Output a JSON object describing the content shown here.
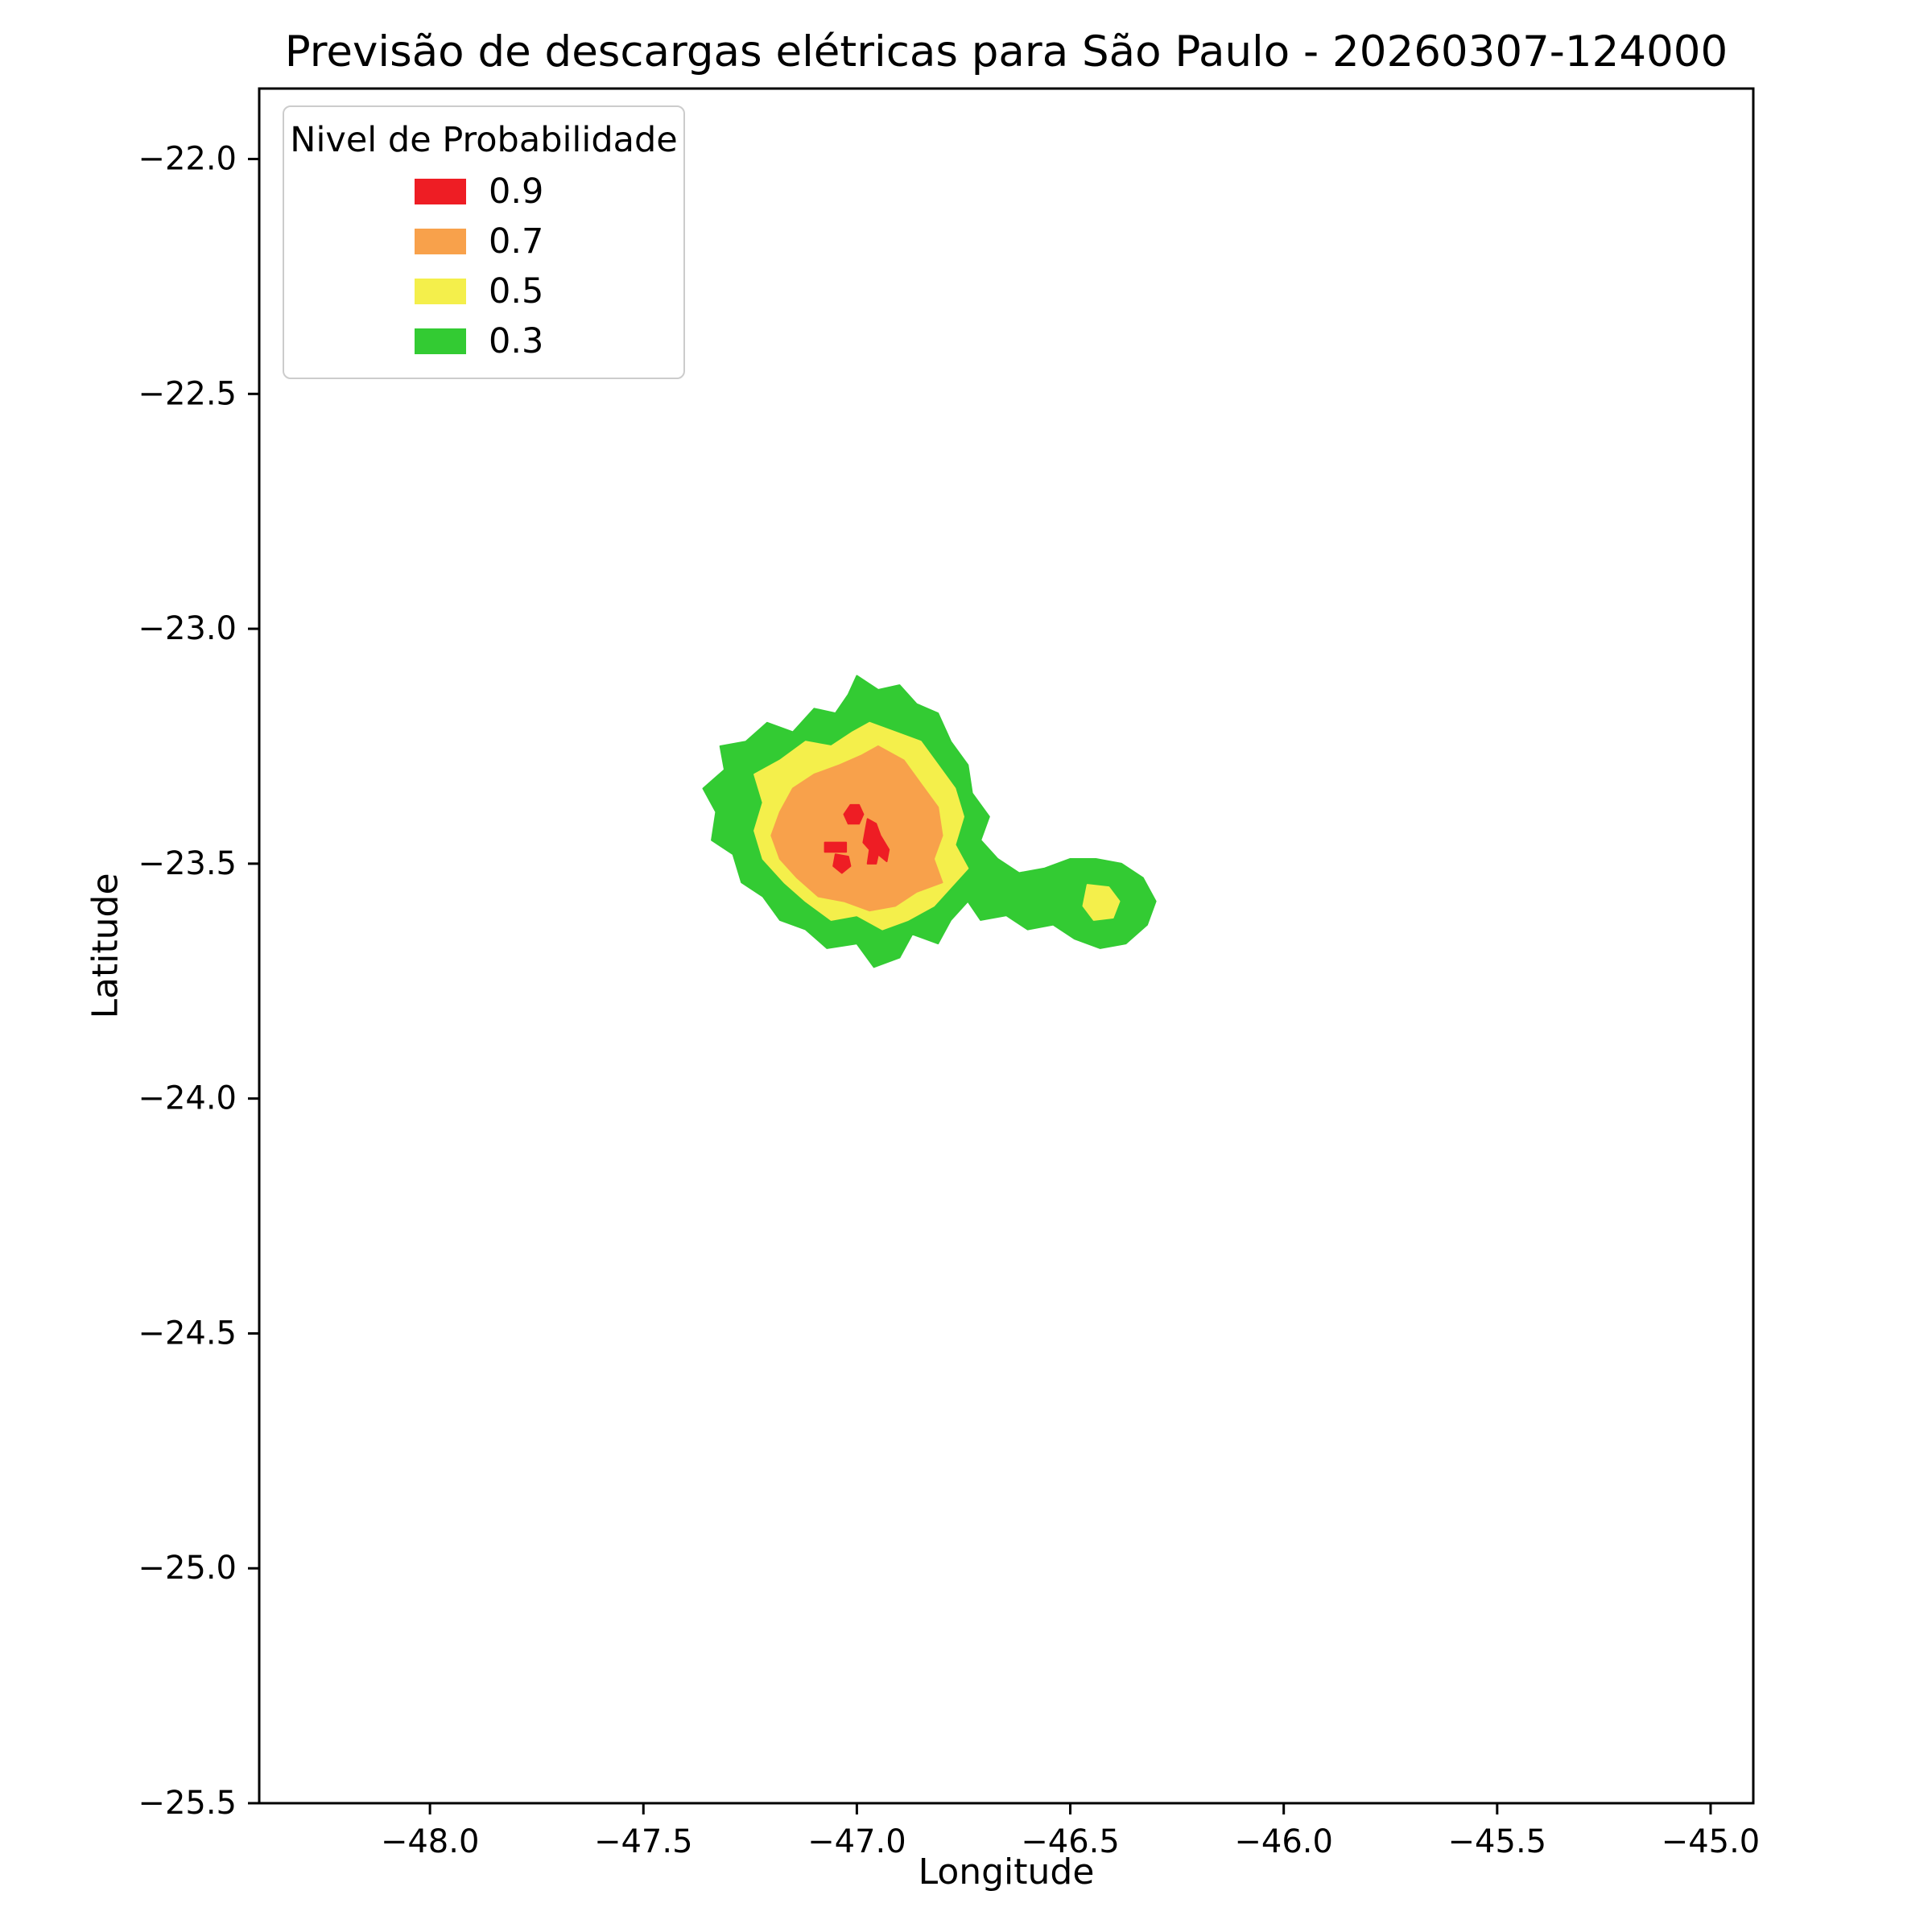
{
  "chart_data": {
    "type": "contour",
    "title": "Previsão de descargas elétricas para São Paulo - 20260307-124000",
    "xlabel": "Longitude",
    "ylabel": "Latitude",
    "xlim": [
      -48.4,
      -44.9
    ],
    "ylim": [
      -25.5,
      -21.85
    ],
    "grid": false,
    "legend": {
      "title": "Nivel de Probabilidade",
      "position": "upper-left",
      "entries": [
        {
          "label": "0.9",
          "color": "#ee1d24"
        },
        {
          "label": "0.7",
          "color": "#f8a14b"
        },
        {
          "label": "0.5",
          "color": "#f4ef4b"
        },
        {
          "label": "0.3",
          "color": "#33cb33"
        }
      ]
    },
    "x_ticks": [
      {
        "value": -48.0,
        "label": "−48.0"
      },
      {
        "value": -47.5,
        "label": "−47.5"
      },
      {
        "value": -47.0,
        "label": "−47.0"
      },
      {
        "value": -46.5,
        "label": "−46.5"
      },
      {
        "value": -46.0,
        "label": "−46.0"
      },
      {
        "value": -45.5,
        "label": "−45.5"
      },
      {
        "value": -45.0,
        "label": "−45.0"
      }
    ],
    "y_ticks": [
      {
        "value": -22.0,
        "label": "−22.0"
      },
      {
        "value": -22.5,
        "label": "−22.5"
      },
      {
        "value": -23.0,
        "label": "−23.0"
      },
      {
        "value": -23.5,
        "label": "−23.5"
      },
      {
        "value": -24.0,
        "label": "−24.0"
      },
      {
        "value": -24.5,
        "label": "−24.5"
      },
      {
        "value": -25.0,
        "label": "−25.0"
      },
      {
        "value": -25.5,
        "label": "−25.5"
      }
    ],
    "levels": [
      {
        "level": "0.3",
        "color": "#33cb33",
        "polygons": [
          [
            [
              -47.0,
              -23.1
            ],
            [
              -46.95,
              -23.13
            ],
            [
              -46.9,
              -23.12
            ],
            [
              -46.86,
              -23.16
            ],
            [
              -46.81,
              -23.18
            ],
            [
              -46.78,
              -23.24
            ],
            [
              -46.74,
              -23.29
            ],
            [
              -46.73,
              -23.35
            ],
            [
              -46.69,
              -23.4
            ],
            [
              -46.71,
              -23.45
            ],
            [
              -46.67,
              -23.49
            ],
            [
              -46.62,
              -23.52
            ],
            [
              -46.56,
              -23.51
            ],
            [
              -46.5,
              -23.49
            ],
            [
              -46.44,
              -23.49
            ],
            [
              -46.38,
              -23.5
            ],
            [
              -46.33,
              -23.53
            ],
            [
              -46.3,
              -23.58
            ],
            [
              -46.32,
              -23.63
            ],
            [
              -46.37,
              -23.67
            ],
            [
              -46.43,
              -23.68
            ],
            [
              -46.49,
              -23.66
            ],
            [
              -46.54,
              -23.63
            ],
            [
              -46.6,
              -23.64
            ],
            [
              -46.65,
              -23.61
            ],
            [
              -46.71,
              -23.62
            ],
            [
              -46.74,
              -23.58
            ],
            [
              -46.78,
              -23.62
            ],
            [
              -46.81,
              -23.67
            ],
            [
              -46.87,
              -23.65
            ],
            [
              -46.9,
              -23.7
            ],
            [
              -46.96,
              -23.72
            ],
            [
              -47.0,
              -23.67
            ],
            [
              -47.07,
              -23.68
            ],
            [
              -47.12,
              -23.64
            ],
            [
              -47.18,
              -23.62
            ],
            [
              -47.22,
              -23.57
            ],
            [
              -47.27,
              -23.54
            ],
            [
              -47.29,
              -23.48
            ],
            [
              -47.34,
              -23.45
            ],
            [
              -47.33,
              -23.39
            ],
            [
              -47.36,
              -23.34
            ],
            [
              -47.31,
              -23.3
            ],
            [
              -47.32,
              -23.25
            ],
            [
              -47.26,
              -23.24
            ],
            [
              -47.21,
              -23.2
            ],
            [
              -47.15,
              -23.22
            ],
            [
              -47.1,
              -23.17
            ],
            [
              -47.05,
              -23.18
            ],
            [
              -47.02,
              -23.14
            ]
          ]
        ]
      },
      {
        "level": "0.5",
        "color": "#f4ef4b",
        "polygons": [
          [
            [
              -46.97,
              -23.2
            ],
            [
              -46.91,
              -23.22
            ],
            [
              -46.85,
              -23.24
            ],
            [
              -46.81,
              -23.29
            ],
            [
              -46.77,
              -23.34
            ],
            [
              -46.75,
              -23.4
            ],
            [
              -46.77,
              -23.46
            ],
            [
              -46.74,
              -23.51
            ],
            [
              -46.78,
              -23.55
            ],
            [
              -46.82,
              -23.59
            ],
            [
              -46.88,
              -23.62
            ],
            [
              -46.94,
              -23.64
            ],
            [
              -47.0,
              -23.61
            ],
            [
              -47.06,
              -23.62
            ],
            [
              -47.12,
              -23.58
            ],
            [
              -47.17,
              -23.54
            ],
            [
              -47.22,
              -23.49
            ],
            [
              -47.24,
              -23.43
            ],
            [
              -47.22,
              -23.37
            ],
            [
              -47.24,
              -23.31
            ],
            [
              -47.18,
              -23.28
            ],
            [
              -47.12,
              -23.24
            ],
            [
              -47.06,
              -23.25
            ],
            [
              -47.01,
              -23.22
            ]
          ],
          [
            [
              -46.46,
              -23.545
            ],
            [
              -46.41,
              -23.55
            ],
            [
              -46.385,
              -23.58
            ],
            [
              -46.4,
              -23.615
            ],
            [
              -46.445,
              -23.62
            ],
            [
              -46.47,
              -23.59
            ]
          ]
        ]
      },
      {
        "level": "0.7",
        "color": "#f8a14b",
        "polygons": [
          [
            [
              -46.95,
              -23.25
            ],
            [
              -46.89,
              -23.28
            ],
            [
              -46.85,
              -23.33
            ],
            [
              -46.81,
              -23.38
            ],
            [
              -46.8,
              -23.44
            ],
            [
              -46.82,
              -23.49
            ],
            [
              -46.8,
              -23.54
            ],
            [
              -46.86,
              -23.56
            ],
            [
              -46.91,
              -23.59
            ],
            [
              -46.97,
              -23.6
            ],
            [
              -47.03,
              -23.58
            ],
            [
              -47.09,
              -23.57
            ],
            [
              -47.14,
              -23.53
            ],
            [
              -47.18,
              -23.49
            ],
            [
              -47.2,
              -23.44
            ],
            [
              -47.18,
              -23.39
            ],
            [
              -47.15,
              -23.34
            ],
            [
              -47.1,
              -23.31
            ],
            [
              -47.04,
              -23.29
            ],
            [
              -46.99,
              -23.27
            ]
          ]
        ]
      },
      {
        "level": "0.9",
        "color": "#ee1d24",
        "polygons": [
          [
            [
              -47.015,
              -23.375
            ],
            [
              -46.995,
              -23.375
            ],
            [
              -46.985,
              -23.395
            ],
            [
              -46.995,
              -23.415
            ],
            [
              -47.02,
              -23.415
            ],
            [
              -47.03,
              -23.395
            ]
          ],
          [
            [
              -46.975,
              -23.405
            ],
            [
              -46.955,
              -23.415
            ],
            [
              -46.945,
              -23.44
            ],
            [
              -46.925,
              -23.47
            ],
            [
              -46.93,
              -23.495
            ],
            [
              -46.95,
              -23.48
            ],
            [
              -46.955,
              -23.5
            ],
            [
              -46.975,
              -23.5
            ],
            [
              -46.97,
              -23.47
            ],
            [
              -46.985,
              -23.455
            ],
            [
              -46.98,
              -23.43
            ]
          ],
          [
            [
              -47.075,
              -23.455
            ],
            [
              -47.025,
              -23.455
            ],
            [
              -47.025,
              -23.475
            ],
            [
              -47.075,
              -23.475
            ]
          ],
          [
            [
              -47.05,
              -23.48
            ],
            [
              -47.02,
              -23.485
            ],
            [
              -47.015,
              -23.505
            ],
            [
              -47.035,
              -23.52
            ],
            [
              -47.055,
              -23.505
            ]
          ]
        ]
      }
    ]
  }
}
